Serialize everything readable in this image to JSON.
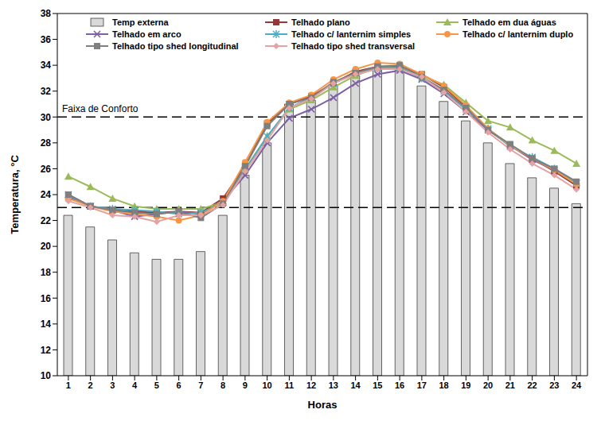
{
  "chart_data": {
    "type": "combo",
    "x_label": "Horas",
    "y_label": "Temperatura, °C",
    "categories": [
      1,
      2,
      3,
      4,
      5,
      6,
      7,
      8,
      9,
      10,
      11,
      12,
      13,
      14,
      15,
      16,
      17,
      18,
      19,
      20,
      21,
      22,
      23,
      24
    ],
    "ylim": [
      10,
      38
    ],
    "yticks": [
      10,
      12,
      14,
      16,
      18,
      20,
      22,
      24,
      26,
      28,
      30,
      32,
      34,
      36,
      38
    ],
    "grid": false,
    "legend": "top",
    "comfort_band": {
      "label": "Faixa de Conforto",
      "values": [
        23,
        30
      ]
    },
    "series": [
      {
        "name": "Temp externa",
        "type": "bar",
        "color": "#d9d9d9",
        "values": [
          22.4,
          21.5,
          20.5,
          19.5,
          19.0,
          19.0,
          19.6,
          22.4,
          25.5,
          28.0,
          31.0,
          31.3,
          32.5,
          33.2,
          33.7,
          33.6,
          32.4,
          31.2,
          29.7,
          28.0,
          26.4,
          25.3,
          24.5,
          23.3
        ]
      },
      {
        "name": "Telhado plano",
        "type": "line",
        "color": "#953735",
        "marker": "square",
        "values": [
          23.8,
          23.1,
          22.8,
          22.7,
          22.6,
          22.7,
          22.6,
          23.7,
          26.2,
          29.5,
          31.0,
          31.6,
          32.6,
          33.5,
          33.9,
          33.9,
          33.3,
          32.3,
          30.8,
          29.0,
          27.8,
          26.8,
          25.8,
          24.7
        ]
      },
      {
        "name": "Telhado em dua águas",
        "type": "line",
        "color": "#9bbb59",
        "marker": "triangle",
        "values": [
          25.4,
          24.6,
          23.7,
          23.1,
          22.9,
          22.9,
          22.9,
          23.4,
          26.0,
          28.5,
          30.6,
          31.3,
          32.3,
          33.2,
          33.8,
          33.8,
          33.2,
          32.5,
          31.1,
          29.7,
          29.2,
          28.2,
          27.4,
          26.4
        ]
      },
      {
        "name": "Telhado em arco",
        "type": "line",
        "color": "#7e5fa3",
        "marker": "x",
        "values": [
          24.0,
          23.1,
          22.8,
          22.3,
          22.5,
          22.7,
          22.5,
          23.5,
          25.5,
          28.0,
          29.9,
          30.6,
          31.5,
          32.6,
          33.3,
          33.6,
          32.9,
          31.8,
          30.4,
          29.0,
          27.8,
          26.7,
          25.9,
          24.9
        ]
      },
      {
        "name": "Telhado c/ lanternim simples",
        "type": "line",
        "color": "#4bacc6",
        "marker": "asterisk",
        "values": [
          23.9,
          23.1,
          22.9,
          22.8,
          22.7,
          22.5,
          22.6,
          23.4,
          25.9,
          28.5,
          30.7,
          31.5,
          32.6,
          33.4,
          33.8,
          33.8,
          33.0,
          32.0,
          30.6,
          29.1,
          27.7,
          26.9,
          26.0,
          24.9
        ]
      },
      {
        "name": "Telhado c/ lanternim duplo",
        "type": "line",
        "color": "#f79646",
        "marker": "circle",
        "values": [
          23.7,
          23.1,
          22.7,
          22.5,
          22.3,
          22.0,
          22.4,
          23.5,
          26.5,
          29.6,
          31.1,
          31.7,
          32.9,
          33.7,
          34.2,
          34.1,
          33.3,
          32.4,
          30.9,
          29.1,
          27.8,
          26.8,
          25.9,
          24.8
        ]
      },
      {
        "name": "Telhado tipo shed longitudinal",
        "type": "line",
        "color": "#7f7f7f",
        "marker": "square",
        "values": [
          24.0,
          23.1,
          22.8,
          22.6,
          22.5,
          22.7,
          22.2,
          23.3,
          26.2,
          29.3,
          31.0,
          31.5,
          32.7,
          33.4,
          33.9,
          34.0,
          33.1,
          32.1,
          30.7,
          29.0,
          27.9,
          26.8,
          26.0,
          25.0
        ]
      },
      {
        "name": "Telhado tipo shed transversal",
        "type": "line",
        "color": "#e6a2a2",
        "marker": "diamond",
        "values": [
          23.5,
          23.0,
          22.4,
          22.3,
          21.9,
          22.4,
          22.4,
          23.2,
          25.8,
          28.2,
          30.7,
          31.4,
          32.6,
          33.3,
          33.7,
          33.7,
          33.1,
          31.9,
          30.4,
          28.8,
          27.5,
          26.4,
          25.5,
          24.4
        ]
      }
    ]
  }
}
